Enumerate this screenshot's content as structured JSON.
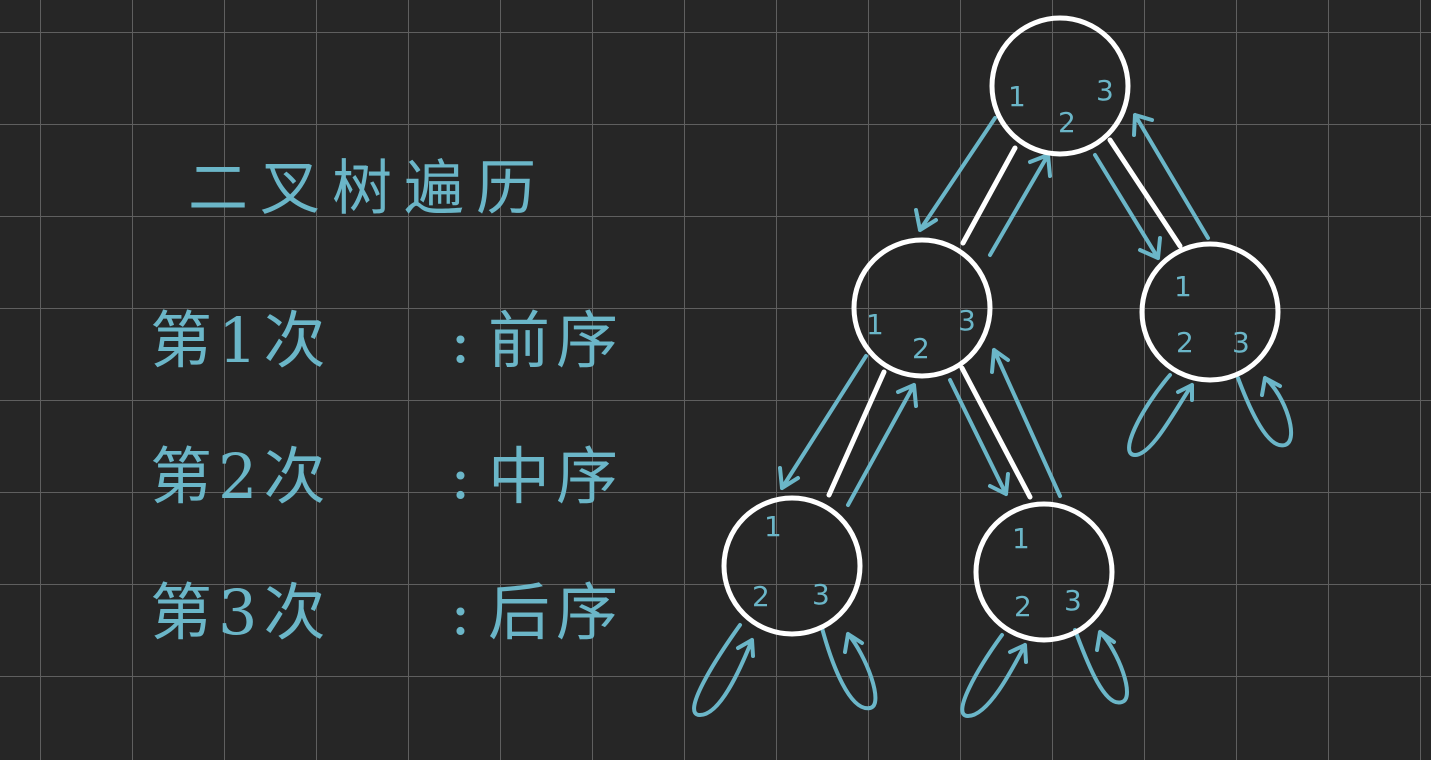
{
  "title": "二叉树遍历",
  "rules": [
    {
      "ordinal": "第1次",
      "colon": ":",
      "order": "前序"
    },
    {
      "ordinal": "第2次",
      "colon": ":",
      "order": "中序"
    },
    {
      "ordinal": "第3次",
      "colon": ":",
      "order": "后序"
    }
  ],
  "visit_labels": [
    "1",
    "2",
    "3"
  ],
  "colors": {
    "background": "#262626",
    "grid": "#5f5f5f",
    "ink": "#6bb6c8",
    "node": "#ffffff"
  }
}
